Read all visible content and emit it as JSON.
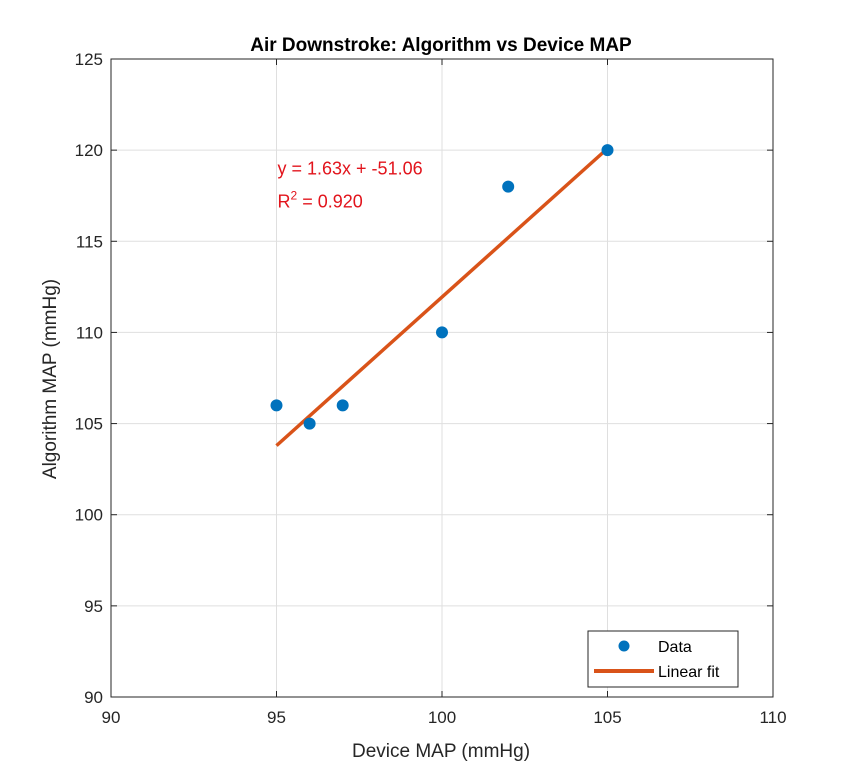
{
  "chart_data": {
    "type": "scatter",
    "title": "Air Downstroke: Algorithm vs Device MAP",
    "xlabel": "Device MAP (mmHg)",
    "ylabel": "Algorithm MAP (mmHg)",
    "xlim": [
      90,
      110
    ],
    "ylim": [
      90,
      125
    ],
    "xticks": [
      90,
      95,
      100,
      105,
      110
    ],
    "yticks": [
      90,
      95,
      100,
      105,
      110,
      115,
      120,
      125
    ],
    "grid": true,
    "legend_position": "bottom-right",
    "series": [
      {
        "name": "Data",
        "kind": "scatter",
        "color": "#0072BD",
        "points": [
          {
            "x": 95,
            "y": 106
          },
          {
            "x": 96,
            "y": 105
          },
          {
            "x": 97,
            "y": 106
          },
          {
            "x": 100,
            "y": 110
          },
          {
            "x": 102,
            "y": 118
          },
          {
            "x": 105,
            "y": 120
          }
        ]
      },
      {
        "name": "Linear fit",
        "kind": "line",
        "color": "#D95319",
        "slope": 1.63,
        "intercept": -51.06,
        "x_range": [
          95,
          105
        ]
      }
    ],
    "annotation": {
      "equation": "y = 1.63x + -51.06",
      "r2_prefix": "R",
      "r2_sup": "2",
      "r2_value": " = 0.920",
      "position": {
        "x": 95,
        "y": 119
      },
      "color": "#E2141C"
    }
  }
}
